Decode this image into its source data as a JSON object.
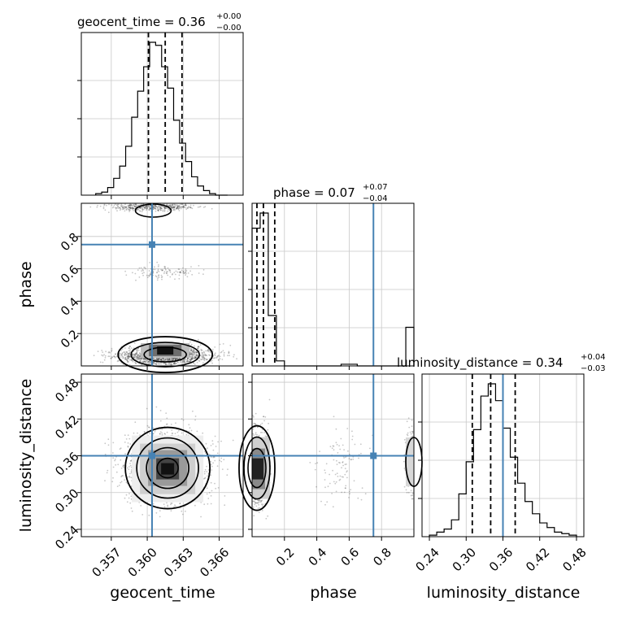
{
  "chart_data": {
    "type": "corner",
    "parameters": [
      "geocent_time",
      "phase",
      "luminosity_distance"
    ],
    "truths": {
      "geocent_time": 0.3604,
      "phase": 0.75,
      "luminosity_distance": 0.36
    },
    "titles": [
      {
        "param": "geocent_time",
        "prefix": "geocent_time = 0.36",
        "plus": "+0.00",
        "minus": "−0.00"
      },
      {
        "param": "phase",
        "prefix": "phase = 0.07",
        "plus": "+0.07",
        "minus": "−0.04"
      },
      {
        "param": "luminosity_distance",
        "prefix": "luminosity_distance = 0.34",
        "plus": "+0.04",
        "minus": "−0.03"
      }
    ],
    "axes": {
      "geocent_time": {
        "range": [
          0.3545,
          0.368
        ],
        "ticks": [
          0.357,
          0.36,
          0.363,
          0.366
        ],
        "tick_labels": [
          "0.357",
          "0.360",
          "0.363",
          "0.366"
        ]
      },
      "phase": {
        "range": [
          0.0,
          1.0
        ],
        "ticks": [
          0.2,
          0.4,
          0.6,
          0.8
        ],
        "tick_labels": [
          "0.2",
          "0.4",
          "0.6",
          "0.8"
        ]
      },
      "luminosity_distance": {
        "range": [
          0.228,
          0.492
        ],
        "ticks": [
          0.24,
          0.3,
          0.36,
          0.42,
          0.48
        ],
        "tick_labels": [
          "0.24",
          "0.30",
          "0.36",
          "0.42",
          "0.48"
        ]
      }
    },
    "histograms": {
      "geocent_time": {
        "bin_edges": [
          0.3557,
          0.3562,
          0.3567,
          0.3572,
          0.3577,
          0.3582,
          0.3587,
          0.3592,
          0.3597,
          0.3602,
          0.3607,
          0.3612,
          0.3617,
          0.3622,
          0.3627,
          0.3632,
          0.3637,
          0.3642,
          0.3647,
          0.3652,
          0.3657,
          0.3662,
          0.3667
        ],
        "counts": [
          1,
          2,
          5,
          11,
          19,
          32,
          51,
          68,
          84,
          100,
          98,
          84,
          70,
          49,
          34,
          22,
          12,
          6,
          3,
          1,
          0,
          0
        ],
        "quantiles": [
          0.3601,
          0.3615,
          0.3629
        ]
      },
      "phase": {
        "bin_edges": [
          0.0,
          0.05,
          0.1,
          0.15,
          0.2,
          0.25,
          0.3,
          0.35,
          0.4,
          0.45,
          0.5,
          0.55,
          0.6,
          0.65,
          0.7,
          0.75,
          0.8,
          0.85,
          0.9,
          0.95,
          1.0
        ],
        "counts": [
          82,
          91,
          30,
          3,
          0,
          0,
          0,
          0,
          0,
          0,
          0,
          1,
          1,
          0,
          0,
          0,
          0,
          0,
          0,
          23
        ],
        "quantiles": [
          0.03,
          0.07,
          0.14
        ]
      },
      "luminosity_distance": {
        "bin_edges": [
          0.24,
          0.252,
          0.264,
          0.276,
          0.288,
          0.3,
          0.312,
          0.324,
          0.336,
          0.348,
          0.36,
          0.372,
          0.384,
          0.396,
          0.408,
          0.42,
          0.432,
          0.444,
          0.456,
          0.468,
          0.48
        ],
        "counts": [
          1,
          3,
          5,
          11,
          28,
          49,
          70,
          92,
          100,
          89,
          71,
          52,
          35,
          23,
          15,
          9,
          6,
          3,
          2,
          1
        ],
        "quantiles": [
          0.31,
          0.34,
          0.38
        ]
      }
    },
    "posterior_2d": {
      "geocent_time_vs_phase": {
        "modes": [
          {
            "x": 0.3615,
            "y": 0.07,
            "weight": "dominant"
          },
          {
            "x": 0.3605,
            "y": 0.99,
            "weight": "minor"
          },
          {
            "x": 0.3615,
            "y": 0.58,
            "weight": "sparse"
          }
        ]
      },
      "geocent_time_vs_luminosity_distance": {
        "peak": {
          "x": 0.3617,
          "y": 0.34
        }
      },
      "phase_vs_luminosity_distance": {
        "modes": [
          {
            "x": 0.03,
            "y": 0.34
          },
          {
            "x": 0.99,
            "y": 0.35
          }
        ]
      }
    },
    "labels": {
      "geocent_time": "geocent_time",
      "phase": "phase",
      "luminosity_distance": "luminosity_distance"
    },
    "colors": {
      "truth": "#4682b4",
      "hist": "#000000",
      "grid": "#c8c8c8"
    }
  }
}
